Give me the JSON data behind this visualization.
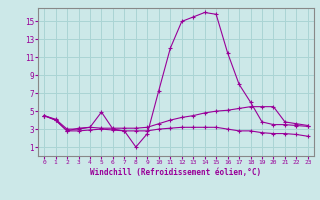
{
  "xlabel": "Windchill (Refroidissement éolien,°C)",
  "background_color": "#cce8e8",
  "grid_color": "#aad4d4",
  "line_color": "#990099",
  "x_values": [
    0,
    1,
    2,
    3,
    4,
    5,
    6,
    7,
    8,
    9,
    10,
    11,
    12,
    13,
    14,
    15,
    16,
    17,
    18,
    19,
    20,
    21,
    22,
    23
  ],
  "line1": [
    4.5,
    4.0,
    2.8,
    3.1,
    3.2,
    4.9,
    3.0,
    2.8,
    1.0,
    2.5,
    7.3,
    12.0,
    15.0,
    15.5,
    16.0,
    15.8,
    11.5,
    8.0,
    6.0,
    3.8,
    3.5,
    3.5,
    3.4,
    3.3
  ],
  "line2": [
    4.5,
    4.1,
    3.0,
    3.0,
    3.2,
    3.1,
    3.1,
    3.1,
    3.1,
    3.2,
    3.6,
    4.0,
    4.3,
    4.5,
    4.8,
    5.0,
    5.1,
    5.3,
    5.5,
    5.5,
    5.5,
    3.8,
    3.6,
    3.4
  ],
  "line3": [
    4.5,
    4.0,
    2.8,
    2.8,
    2.9,
    3.0,
    2.9,
    2.8,
    2.8,
    2.8,
    3.0,
    3.1,
    3.2,
    3.2,
    3.2,
    3.2,
    3.0,
    2.8,
    2.8,
    2.6,
    2.5,
    2.5,
    2.4,
    2.2
  ],
  "ylim": [
    0,
    16.5
  ],
  "xlim": [
    -0.5,
    23.5
  ],
  "yticks": [
    1,
    3,
    5,
    7,
    9,
    11,
    13,
    15
  ],
  "xticks": [
    0,
    1,
    2,
    3,
    4,
    5,
    6,
    7,
    8,
    9,
    10,
    11,
    12,
    13,
    14,
    15,
    16,
    17,
    18,
    19,
    20,
    21,
    22,
    23
  ],
  "spine_color": "#888888"
}
